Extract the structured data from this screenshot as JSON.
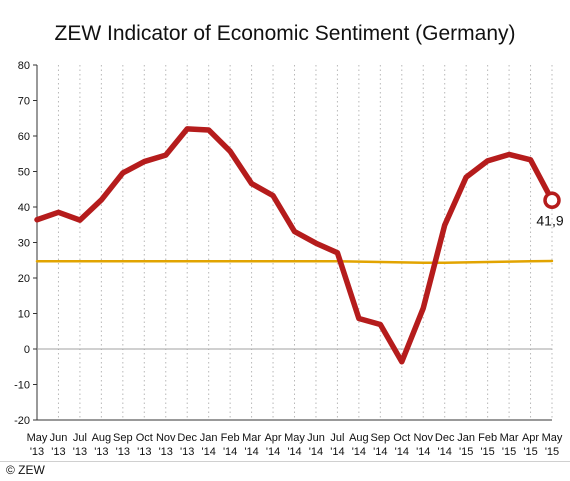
{
  "chart_data": {
    "type": "line",
    "title": "ZEW Indicator of Economic Sentiment (Germany)",
    "x_tick_labels": [
      [
        "May",
        "'13"
      ],
      [
        "Jun",
        "'13"
      ],
      [
        "Jul",
        "'13"
      ],
      [
        "Aug",
        "'13"
      ],
      [
        "Sep",
        "'13"
      ],
      [
        "Oct",
        "'13"
      ],
      [
        "Nov",
        "'13"
      ],
      [
        "Dec",
        "'13"
      ],
      [
        "Jan",
        "'14"
      ],
      [
        "Feb",
        "'14"
      ],
      [
        "Mar",
        "'14"
      ],
      [
        "Apr",
        "'14"
      ],
      [
        "May",
        "'14"
      ],
      [
        "Jun",
        "'14"
      ],
      [
        "Jul",
        "'14"
      ],
      [
        "Aug",
        "'14"
      ],
      [
        "Sep",
        "'14"
      ],
      [
        "Oct",
        "'14"
      ],
      [
        "Nov",
        "'14"
      ],
      [
        "Dec",
        "'14"
      ],
      [
        "Jan",
        "'15"
      ],
      [
        "Feb",
        "'15"
      ],
      [
        "Mar",
        "'15"
      ],
      [
        "Apr",
        "'15"
      ],
      [
        "May",
        "'15"
      ]
    ],
    "series": [
      {
        "values": [
          36.4,
          38.5,
          36.3,
          42.0,
          49.6,
          52.8,
          54.6,
          62.0,
          61.7,
          55.7,
          46.6,
          43.2,
          33.1,
          29.8,
          27.1,
          8.6,
          6.9,
          -3.6,
          11.5,
          34.9,
          48.4,
          53.0,
          54.8,
          53.3,
          41.9
        ],
        "color": "#b51c1c",
        "role": "sentiment"
      },
      {
        "values": [
          24.7,
          24.7,
          24.7,
          24.7,
          24.7,
          24.7,
          24.7,
          24.7,
          24.7,
          24.7,
          24.7,
          24.7,
          24.7,
          24.7,
          24.7,
          24.6,
          24.5,
          24.4,
          24.3,
          24.3,
          24.4,
          24.5,
          24.6,
          24.7,
          24.8
        ],
        "color": "#e2a400",
        "role": "average"
      }
    ],
    "ylim": [
      -20,
      80
    ],
    "y_ticks": [
      -20,
      -10,
      0,
      10,
      20,
      30,
      40,
      50,
      60,
      70,
      80
    ],
    "grid": "vertical-dotted",
    "zero_line": true,
    "end_label": "41,9",
    "xlabel": "",
    "ylabel": ""
  },
  "footer": {
    "copyright": "© ZEW"
  },
  "colors": {
    "zero_line": "#a0a0a0",
    "grid": "#b8b8b8",
    "end_marker_fill": "#ffffff"
  }
}
